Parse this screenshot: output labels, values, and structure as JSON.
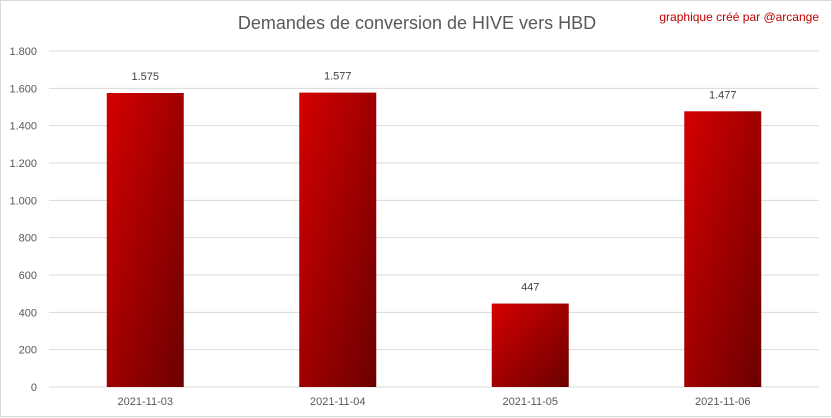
{
  "chart_data": {
    "type": "bar",
    "title": "Demandes de conversion de HIVE vers HBD",
    "credit": "graphique créé par @arcange",
    "categories": [
      "2021-11-03",
      "2021-11-04",
      "2021-11-05",
      "2021-11-06"
    ],
    "values": [
      1575,
      1577,
      447,
      1477
    ],
    "data_labels": [
      "1.575",
      "1.577",
      "447",
      "1.477"
    ],
    "ylim": [
      0,
      1800
    ],
    "yticks": [
      0,
      200,
      400,
      600,
      800,
      1000,
      1200,
      1400,
      1600,
      1800
    ],
    "ytick_labels": [
      "0",
      "200",
      "400",
      "600",
      "800",
      "1.000",
      "1.200",
      "1.400",
      "1.600",
      "1.800"
    ],
    "grid": true,
    "legend": "none",
    "colors": {
      "bar_light": "#d40000",
      "bar_dark": "#6b0000",
      "grid": "#d9d9d9",
      "credit": "#c00000"
    }
  }
}
